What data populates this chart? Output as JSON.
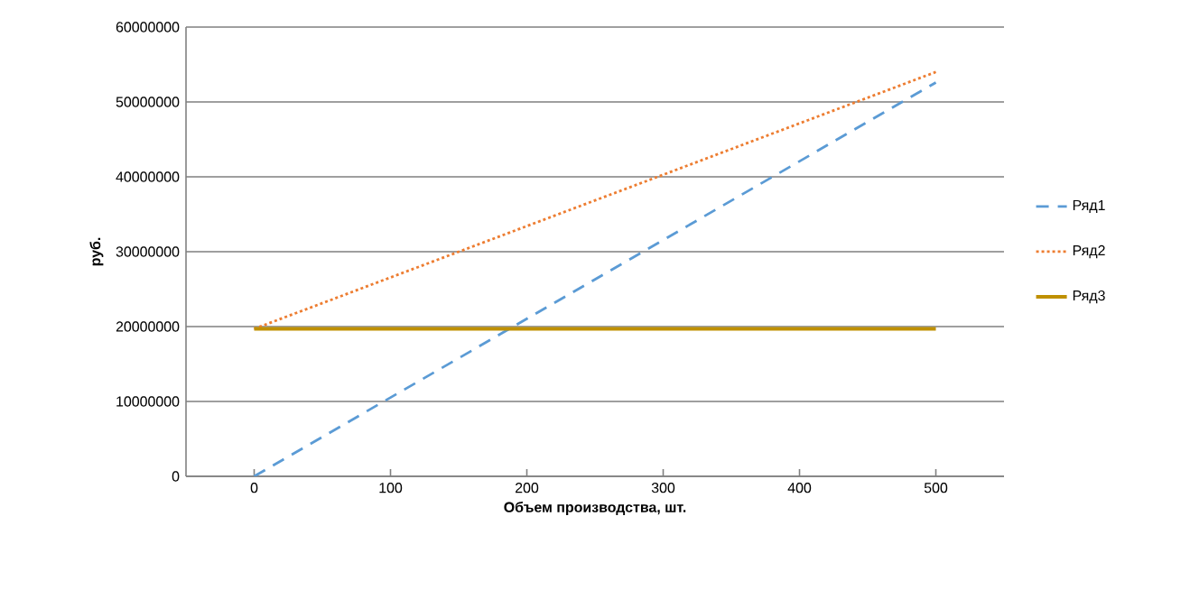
{
  "chart_data": {
    "type": "line",
    "xlabel": "Объем производства,  шт.",
    "ylabel": "руб.",
    "xlim": [
      -50,
      550
    ],
    "xticks": [
      0,
      100,
      200,
      300,
      400,
      500
    ],
    "ylim": [
      0,
      60000000
    ],
    "yticks": [
      0,
      10000000,
      20000000,
      30000000,
      40000000,
      50000000,
      60000000
    ],
    "x": [
      0,
      500
    ],
    "grid": "y",
    "legend": "right",
    "marker": "none",
    "series": [
      {
        "name": "Ряд1",
        "color": "#5b9bd5",
        "line_style": "dashed",
        "values": [
          0,
          52600000
        ]
      },
      {
        "name": "Ряд2",
        "color": "#ed7d31",
        "line_style": "dotted",
        "values": [
          19700000,
          54000000
        ]
      },
      {
        "name": "Ряд3",
        "color": "#bf9000",
        "line_style": "solid",
        "values": [
          19700000,
          19700000
        ]
      }
    ]
  }
}
